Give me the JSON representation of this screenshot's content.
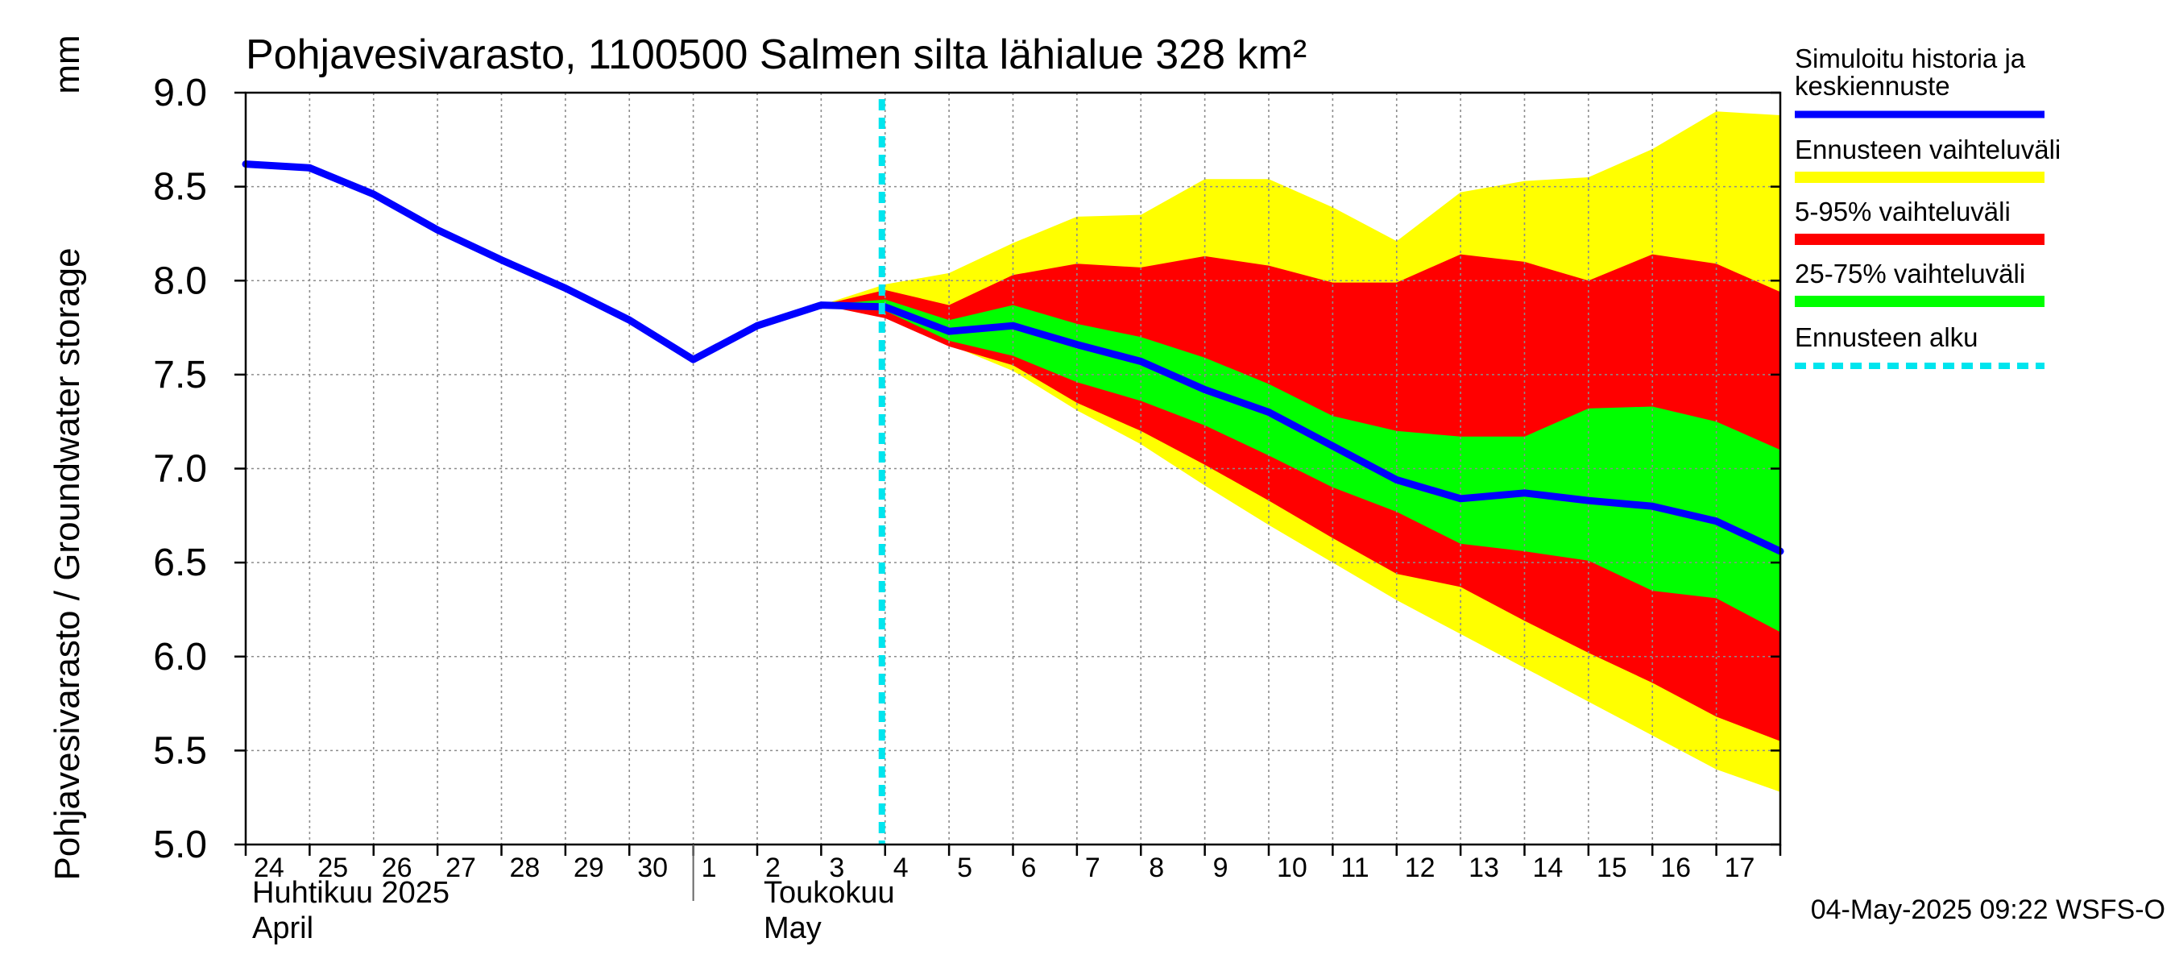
{
  "chart_data": {
    "type": "area",
    "title": "Pohjavesivarasto, 1100500 Salmen silta lähialue 328 km²",
    "ylabel": "Pohjavesivarasto / Groundwater storage",
    "yunit": "mm",
    "ylim": [
      5.0,
      9.0
    ],
    "yticks": [
      "5.0",
      "5.5",
      "6.0",
      "6.5",
      "7.0",
      "7.5",
      "8.0",
      "8.5",
      "9.0"
    ],
    "ytick_values": [
      5.0,
      5.5,
      6.0,
      6.5,
      7.0,
      7.5,
      8.0,
      8.5,
      9.0
    ],
    "x_day_index_range": [
      0,
      24
    ],
    "xtick_labels": [
      "24",
      "25",
      "26",
      "27",
      "28",
      "29",
      "30",
      "1",
      "2",
      "3",
      "4",
      "5",
      "6",
      "7",
      "8",
      "9",
      "10",
      "11",
      "12",
      "13",
      "14",
      "15",
      "16",
      "17"
    ],
    "month_labels": [
      {
        "fi": "Huhtikuu  2025",
        "en": "April",
        "day_index": 0
      },
      {
        "fi": "Toukokuu",
        "en": "May",
        "day_index": 8
      }
    ],
    "month_boundary_day_index": 7,
    "forecast_start_day_index": 10,
    "forecast_start_label": "Ennusteen alku",
    "x": [
      0,
      1,
      2,
      3,
      4,
      5,
      6,
      7,
      8,
      9,
      10,
      11,
      12,
      13,
      14,
      15,
      16,
      17,
      18,
      19,
      20,
      21,
      22,
      23,
      24
    ],
    "series": [
      {
        "name": "Simuloitu historia ja keskiennuste",
        "values": [
          8.62,
          8.6,
          8.46,
          8.27,
          8.11,
          7.96,
          7.79,
          7.58,
          7.76,
          7.87,
          7.86,
          7.73,
          7.76,
          7.66,
          7.57,
          7.42,
          7.3,
          7.12,
          6.94,
          6.84,
          6.87,
          6.83,
          6.8,
          6.72,
          6.56
        ]
      }
    ],
    "bands": [
      {
        "name": "Ennusteen vaihteluväli",
        "x": [
          9,
          10,
          11,
          12,
          13,
          14,
          15,
          16,
          17,
          18,
          19,
          20,
          21,
          22,
          23,
          24
        ],
        "upper": [
          7.87,
          7.98,
          8.04,
          8.2,
          8.34,
          8.35,
          8.54,
          8.54,
          8.39,
          8.21,
          8.47,
          8.53,
          8.55,
          8.7,
          8.9,
          8.88
        ],
        "lower": [
          7.87,
          7.82,
          7.66,
          7.52,
          7.31,
          7.13,
          6.91,
          6.7,
          6.5,
          6.3,
          6.12,
          5.94,
          5.76,
          5.58,
          5.4,
          5.28
        ]
      },
      {
        "name": "5-95% vaihteluväli",
        "x": [
          9,
          10,
          11,
          12,
          13,
          14,
          15,
          16,
          17,
          18,
          19,
          20,
          21,
          22,
          23,
          24
        ],
        "upper": [
          7.87,
          7.95,
          7.87,
          8.03,
          8.09,
          8.07,
          8.13,
          8.08,
          7.99,
          7.99,
          8.14,
          8.1,
          8.0,
          8.14,
          8.09,
          7.94
        ],
        "lower": [
          7.87,
          7.8,
          7.65,
          7.55,
          7.35,
          7.2,
          7.02,
          6.83,
          6.63,
          6.44,
          6.37,
          6.19,
          6.02,
          5.86,
          5.68,
          5.55
        ]
      },
      {
        "name": "25-75% vaihteluväli",
        "x": [
          9,
          10,
          11,
          12,
          13,
          14,
          15,
          16,
          17,
          18,
          19,
          20,
          21,
          22,
          23,
          24
        ],
        "upper": [
          7.87,
          7.9,
          7.79,
          7.87,
          7.77,
          7.7,
          7.59,
          7.45,
          7.28,
          7.2,
          7.17,
          7.17,
          7.32,
          7.33,
          7.25,
          7.1
        ],
        "lower": [
          7.87,
          7.84,
          7.68,
          7.6,
          7.46,
          7.36,
          7.23,
          7.07,
          6.9,
          6.77,
          6.6,
          6.56,
          6.51,
          6.35,
          6.31,
          6.13
        ]
      }
    ],
    "legend": [
      {
        "label": "Simuloitu historia ja\nkeskiennuste",
        "color": "#0000ff",
        "style": "line"
      },
      {
        "label": "Ennusteen vaihteluväli",
        "color": "#ffff00",
        "style": "band"
      },
      {
        "label": "5-95% vaihteluväli",
        "color": "#ff0000",
        "style": "band"
      },
      {
        "label": "25-75% vaihteluväli",
        "color": "#00ff00",
        "style": "band"
      },
      {
        "label": "Ennusteen alku",
        "color": "#00e5ee",
        "style": "dashed"
      }
    ],
    "legend_placement": "right",
    "grid": true,
    "timestamp": "04-May-2025 09:22 WSFS-O"
  },
  "colors": {
    "median": "#0000ff",
    "full_range": "#ffff00",
    "p5_95": "#ff0000",
    "p25_75": "#00ff00",
    "forecast_start": "#00e5ee",
    "grid": "#8c8c8c"
  }
}
